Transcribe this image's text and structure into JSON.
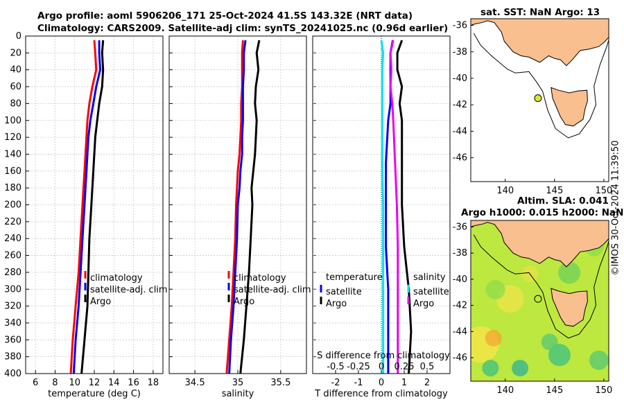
{
  "figure": {
    "title_line1": "Argo profile: aoml 5906206_171 25-Oct-2024 41.5S 143.32E (NRT data)",
    "title_line2": "Climatology: CARS2009. Satellite-adj clim: synTS_20241025.nc (0.96d earlier)",
    "stamp": "©IMOS 30-Oct-2024 11:39:50"
  },
  "colors": {
    "climatology": "#ff0000",
    "satellite": "#0000ff",
    "argo": "#000000",
    "t_diff": "#00e5ee",
    "s_diff": "#ee00ee",
    "land": "#f9bf8f",
    "sea": "#ffffff"
  },
  "chart_data": [
    {
      "type": "line",
      "id": "temperature",
      "xlabel": "temperature (deg C)",
      "ylabel": "",
      "xlim": [
        5,
        19
      ],
      "ylim": [
        0,
        400
      ],
      "xticks": [
        "6",
        "8",
        "10",
        "12",
        "14",
        "16",
        "18"
      ],
      "yticks": [
        "0",
        "20",
        "40",
        "60",
        "80",
        "100",
        "120",
        "140",
        "160",
        "180",
        "200",
        "220",
        "240",
        "260",
        "280",
        "300",
        "320",
        "340",
        "360",
        "380",
        "400"
      ],
      "legend": [
        "climatology",
        "satellite-adj. clim",
        "Argo"
      ],
      "series": [
        {
          "name": "climatology",
          "depth": [
            5,
            20,
            40,
            60,
            80,
            100,
            120,
            140,
            160,
            180,
            200,
            240,
            280,
            320,
            360,
            400
          ],
          "values": [
            12.0,
            12.1,
            12.2,
            11.8,
            11.5,
            11.3,
            11.2,
            11.1,
            11.0,
            10.9,
            10.8,
            10.6,
            10.4,
            10.1,
            9.8,
            9.6
          ]
        },
        {
          "name": "satellite-adj. clim",
          "depth": [
            5,
            20,
            40,
            60,
            80,
            100,
            120,
            140,
            160,
            180,
            200,
            240,
            280,
            320,
            360,
            400
          ],
          "values": [
            12.5,
            12.5,
            12.6,
            12.2,
            11.9,
            11.6,
            11.4,
            11.3,
            11.2,
            11.1,
            11.0,
            10.8,
            10.6,
            10.4,
            10.1,
            9.9
          ]
        },
        {
          "name": "Argo",
          "depth": [
            5,
            20,
            40,
            60,
            80,
            100,
            120,
            140,
            160,
            180,
            200,
            240,
            280,
            320,
            360,
            400
          ],
          "values": [
            12.9,
            12.8,
            12.9,
            12.8,
            12.5,
            12.3,
            12.1,
            12.0,
            11.9,
            11.8,
            11.7,
            11.5,
            11.4,
            11.3,
            11.0,
            10.7
          ]
        }
      ]
    },
    {
      "type": "line",
      "id": "salinity",
      "xlabel": "salinity",
      "ylabel": "",
      "xlim": [
        34.2,
        35.8
      ],
      "ylim": [
        0,
        400
      ],
      "xticks": [
        "34.5",
        "35",
        "35.5"
      ],
      "legend": [
        "climatology",
        "satellite-adj. clim",
        "Argo"
      ],
      "series": [
        {
          "name": "climatology",
          "depth": [
            5,
            20,
            40,
            60,
            80,
            100,
            120,
            140,
            160,
            180,
            200,
            240,
            280,
            320,
            360,
            400
          ],
          "values": [
            35.06,
            35.05,
            35.05,
            35.05,
            35.04,
            35.04,
            35.03,
            35.02,
            35.0,
            34.99,
            34.98,
            34.97,
            34.95,
            34.93,
            34.9,
            34.87
          ]
        },
        {
          "name": "satellite-adj. clim",
          "depth": [
            5,
            20,
            40,
            60,
            80,
            100,
            120,
            140,
            160,
            180,
            200,
            240,
            280,
            320,
            360,
            400
          ],
          "values": [
            35.09,
            35.07,
            35.07,
            35.06,
            35.06,
            35.06,
            35.05,
            35.05,
            35.03,
            35.02,
            35.0,
            34.99,
            34.97,
            34.95,
            34.92,
            34.9
          ]
        },
        {
          "name": "Argo",
          "depth": [
            5,
            20,
            40,
            60,
            80,
            100,
            120,
            140,
            160,
            180,
            200,
            240,
            280,
            320,
            360,
            400
          ],
          "values": [
            35.25,
            35.22,
            35.24,
            35.21,
            35.2,
            35.22,
            35.21,
            35.2,
            35.18,
            35.16,
            35.17,
            35.15,
            35.13,
            35.1,
            35.07,
            35.03
          ]
        }
      ]
    },
    {
      "type": "line",
      "id": "difference",
      "xlabel": "T difference from climatology",
      "xlabel_top": "S difference from climatology",
      "ylabel": "",
      "xlim": [
        -3,
        3
      ],
      "xlim_s": [
        -0.75,
        0.75
      ],
      "ylim": [
        0,
        400
      ],
      "xticks": [
        "-2",
        "-1",
        "0",
        "1",
        "2"
      ],
      "xticks_s": [
        "-0.5",
        "-0.25",
        "0",
        "0.25",
        "0.5"
      ],
      "legend_left_title": "temperature",
      "legend_right_title": "salinity",
      "legend_left": [
        "satellite",
        "Argo"
      ],
      "legend_right": [
        "satellite",
        "Argo"
      ],
      "series": [
        {
          "name": "T satellite",
          "axis": "T",
          "depth": [
            5,
            20,
            40,
            60,
            80,
            100,
            150,
            200,
            250,
            300,
            350,
            400
          ],
          "values": [
            0.5,
            0.4,
            0.4,
            0.4,
            0.4,
            0.3,
            0.2,
            0.2,
            0.2,
            0.3,
            0.3,
            0.3
          ]
        },
        {
          "name": "T Argo",
          "axis": "T",
          "depth": [
            5,
            20,
            40,
            60,
            80,
            100,
            150,
            200,
            250,
            300,
            350,
            400
          ],
          "values": [
            0.9,
            0.7,
            0.7,
            0.9,
            0.8,
            0.9,
            0.9,
            0.9,
            1.0,
            1.2,
            1.3,
            1.2
          ]
        },
        {
          "name": "S satellite",
          "axis": "S",
          "depth": [
            5,
            20,
            40,
            60,
            80,
            100,
            150,
            200,
            250,
            300,
            350,
            400
          ],
          "values": [
            0.0,
            0.02,
            0.01,
            0.01,
            0.01,
            0.01,
            0.01,
            0.02,
            0.02,
            0.02,
            0.02,
            0.02
          ]
        },
        {
          "name": "S Argo",
          "axis": "S",
          "depth": [
            5,
            20,
            40,
            60,
            80,
            100,
            150,
            200,
            250,
            300,
            350,
            400
          ],
          "values": [
            0.13,
            0.1,
            0.11,
            0.1,
            0.12,
            0.13,
            0.15,
            0.17,
            0.18,
            0.18,
            0.18,
            0.18
          ]
        }
      ]
    },
    {
      "type": "scatter",
      "id": "sst_map",
      "title": "sat. SST: NaN Argo: 13",
      "xlim": [
        136.5,
        150.5
      ],
      "ylim": [
        -47.8,
        -35.5
      ],
      "xticks": [
        "140",
        "145",
        "150"
      ],
      "yticks": [
        "-36",
        "-38",
        "-40",
        "-42",
        "-44",
        "-46"
      ],
      "float": {
        "lon": 143.32,
        "lat": -41.5
      }
    },
    {
      "type": "heatmap",
      "id": "sla_map",
      "title_line1": "Altim. SLA: 0.041",
      "title_line2": "Argo h1000: 0.015 h2000: NaN",
      "xlim": [
        136.5,
        150.5
      ],
      "ylim": [
        -47.8,
        -35.5
      ],
      "xticks": [
        "140",
        "145",
        "150"
      ],
      "yticks": [
        "-36",
        "-38",
        "-40",
        "-42",
        "-44",
        "-46"
      ],
      "float": {
        "lon": 143.32,
        "lat": -41.5
      }
    }
  ]
}
